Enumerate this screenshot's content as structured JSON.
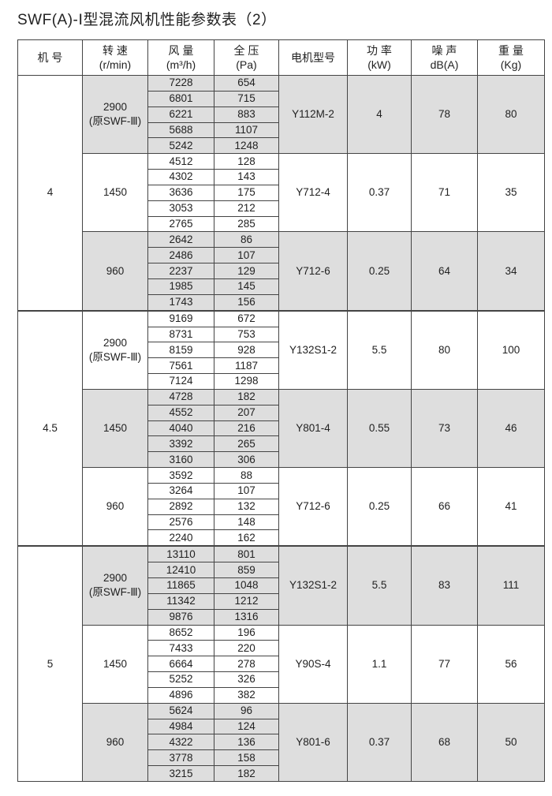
{
  "title": "SWF(A)-Ⅰ型混流风机性能参数表（2）",
  "headers": [
    {
      "l1": "机 号",
      "l2": ""
    },
    {
      "l1": "转 速",
      "l2": "(r/min)"
    },
    {
      "l1": "风 量",
      "l2": "(m³/h)"
    },
    {
      "l1": "全 压",
      "l2": "(Pa)"
    },
    {
      "l1": "电机型号",
      "l2": ""
    },
    {
      "l1": "功 率",
      "l2": "(kW)"
    },
    {
      "l1": "噪 声",
      "l2": "dB(A)"
    },
    {
      "l1": "重 量",
      "l2": "(Kg)"
    }
  ],
  "shade_color": "#dedede",
  "machines": [
    {
      "no": "4",
      "groups": [
        {
          "speed": "2900",
          "speed_note": "(原SWF-Ⅲ)",
          "flow": [
            "7228",
            "6801",
            "6221",
            "5688",
            "5242"
          ],
          "pressure": [
            "654",
            "715",
            "883",
            "1107",
            "1248"
          ],
          "motor": "Y112M-2",
          "power": "4",
          "noise": "78",
          "weight": "80"
        },
        {
          "speed": "1450",
          "speed_note": "",
          "flow": [
            "4512",
            "4302",
            "3636",
            "3053",
            "2765"
          ],
          "pressure": [
            "128",
            "143",
            "175",
            "212",
            "285"
          ],
          "motor": "Y712-4",
          "power": "0.37",
          "noise": "71",
          "weight": "35"
        },
        {
          "speed": "960",
          "speed_note": "",
          "flow": [
            "2642",
            "2486",
            "2237",
            "1985",
            "1743"
          ],
          "pressure": [
            "86",
            "107",
            "129",
            "145",
            "156"
          ],
          "motor": "Y712-6",
          "power": "0.25",
          "noise": "64",
          "weight": "34"
        }
      ]
    },
    {
      "no": "4.5",
      "groups": [
        {
          "speed": "2900",
          "speed_note": "(原SWF-Ⅲ)",
          "flow": [
            "9169",
            "8731",
            "8159",
            "7561",
            "7124"
          ],
          "pressure": [
            "672",
            "753",
            "928",
            "1187",
            "1298"
          ],
          "motor": "Y132S1-2",
          "power": "5.5",
          "noise": "80",
          "weight": "100"
        },
        {
          "speed": "1450",
          "speed_note": "",
          "flow": [
            "4728",
            "4552",
            "4040",
            "3392",
            "3160"
          ],
          "pressure": [
            "182",
            "207",
            "216",
            "265",
            "306"
          ],
          "motor": "Y801-4",
          "power": "0.55",
          "noise": "73",
          "weight": "46"
        },
        {
          "speed": "960",
          "speed_note": "",
          "flow": [
            "3592",
            "3264",
            "2892",
            "2576",
            "2240"
          ],
          "pressure": [
            "88",
            "107",
            "132",
            "148",
            "162"
          ],
          "motor": "Y712-6",
          "power": "0.25",
          "noise": "66",
          "weight": "41"
        }
      ]
    },
    {
      "no": "5",
      "groups": [
        {
          "speed": "2900",
          "speed_note": "(原SWF-Ⅲ)",
          "flow": [
            "13110",
            "12410",
            "11865",
            "11342",
            "9876"
          ],
          "pressure": [
            "801",
            "859",
            "1048",
            "1212",
            "1316"
          ],
          "motor": "Y132S1-2",
          "power": "5.5",
          "noise": "83",
          "weight": "111"
        },
        {
          "speed": "1450",
          "speed_note": "",
          "flow": [
            "8652",
            "7433",
            "6664",
            "5252",
            "4896"
          ],
          "pressure": [
            "196",
            "220",
            "278",
            "326",
            "382"
          ],
          "motor": "Y90S-4",
          "power": "1.1",
          "noise": "77",
          "weight": "56"
        },
        {
          "speed": "960",
          "speed_note": "",
          "flow": [
            "5624",
            "4984",
            "4322",
            "3778",
            "3215"
          ],
          "pressure": [
            "96",
            "124",
            "136",
            "158",
            "182"
          ],
          "motor": "Y801-6",
          "power": "0.37",
          "noise": "68",
          "weight": "50"
        }
      ]
    }
  ]
}
